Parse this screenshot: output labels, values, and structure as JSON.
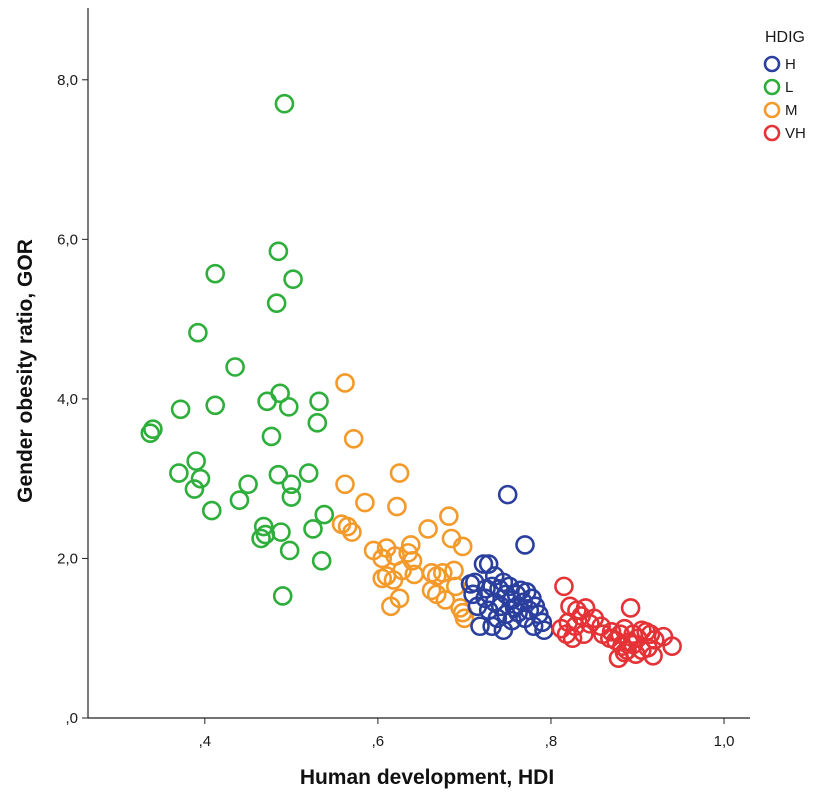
{
  "chart_data": {
    "type": "scatter",
    "title": "",
    "xlabel": "Human development, HDI",
    "ylabel": "Gender obesity ratio, GOR",
    "xlim": [
      0.265,
      1.03
    ],
    "ylim": [
      0,
      8.9
    ],
    "x_ticks": [
      {
        "value": 0.4,
        "label": ",4"
      },
      {
        "value": 0.6,
        "label": ",6"
      },
      {
        "value": 0.8,
        "label": ",8"
      },
      {
        "value": 1.0,
        "label": "1,0"
      }
    ],
    "y_ticks": [
      {
        "value": 0,
        "label": ",0"
      },
      {
        "value": 2,
        "label": "2,0"
      },
      {
        "value": 4,
        "label": "4,0"
      },
      {
        "value": 6,
        "label": "6,0"
      },
      {
        "value": 8,
        "label": "8,0"
      }
    ],
    "grid": false,
    "marker": "open-circle",
    "legend": {
      "title": "HDIG",
      "position": "top-right"
    },
    "series": [
      {
        "name": "H",
        "color": "#2B3F9E",
        "points": [
          [
            0.75,
            2.8
          ],
          [
            0.77,
            2.17
          ],
          [
            0.712,
            1.7
          ],
          [
            0.722,
            1.93
          ],
          [
            0.728,
            1.93
          ],
          [
            0.735,
            1.78
          ],
          [
            0.74,
            1.62
          ],
          [
            0.745,
            1.7
          ],
          [
            0.748,
            1.55
          ],
          [
            0.752,
            1.65
          ],
          [
            0.755,
            1.48
          ],
          [
            0.76,
            1.55
          ],
          [
            0.765,
            1.6
          ],
          [
            0.768,
            1.45
          ],
          [
            0.772,
            1.58
          ],
          [
            0.778,
            1.5
          ],
          [
            0.782,
            1.4
          ],
          [
            0.786,
            1.3
          ],
          [
            0.79,
            1.2
          ],
          [
            0.792,
            1.1
          ],
          [
            0.78,
            1.15
          ],
          [
            0.77,
            1.25
          ],
          [
            0.762,
            1.32
          ],
          [
            0.755,
            1.22
          ],
          [
            0.748,
            1.3
          ],
          [
            0.742,
            1.4
          ],
          [
            0.738,
            1.25
          ],
          [
            0.732,
            1.15
          ],
          [
            0.728,
            1.35
          ],
          [
            0.724,
            1.5
          ],
          [
            0.718,
            1.15
          ],
          [
            0.715,
            1.4
          ],
          [
            0.745,
            1.1
          ],
          [
            0.735,
            1.45
          ],
          [
            0.758,
            1.38
          ],
          [
            0.71,
            1.55
          ],
          [
            0.707,
            1.68
          ],
          [
            0.725,
            1.62
          ],
          [
            0.775,
            1.35
          ],
          [
            0.732,
            1.65
          ]
        ]
      },
      {
        "name": "L",
        "color": "#2EAE3A",
        "points": [
          [
            0.492,
            7.7
          ],
          [
            0.485,
            5.85
          ],
          [
            0.412,
            5.57
          ],
          [
            0.502,
            5.5
          ],
          [
            0.483,
            5.2
          ],
          [
            0.392,
            4.83
          ],
          [
            0.435,
            4.4
          ],
          [
            0.337,
            3.57
          ],
          [
            0.34,
            3.62
          ],
          [
            0.372,
            3.87
          ],
          [
            0.412,
            3.92
          ],
          [
            0.472,
            3.97
          ],
          [
            0.487,
            4.07
          ],
          [
            0.497,
            3.9
          ],
          [
            0.532,
            3.97
          ],
          [
            0.53,
            3.7
          ],
          [
            0.477,
            3.53
          ],
          [
            0.39,
            3.22
          ],
          [
            0.37,
            3.07
          ],
          [
            0.395,
            3.0
          ],
          [
            0.388,
            2.87
          ],
          [
            0.45,
            2.93
          ],
          [
            0.485,
            3.05
          ],
          [
            0.52,
            3.07
          ],
          [
            0.5,
            2.93
          ],
          [
            0.5,
            2.77
          ],
          [
            0.44,
            2.73
          ],
          [
            0.408,
            2.6
          ],
          [
            0.538,
            2.55
          ],
          [
            0.468,
            2.4
          ],
          [
            0.47,
            2.3
          ],
          [
            0.465,
            2.25
          ],
          [
            0.488,
            2.33
          ],
          [
            0.525,
            2.37
          ],
          [
            0.498,
            2.1
          ],
          [
            0.535,
            1.97
          ],
          [
            0.49,
            1.53
          ]
        ]
      },
      {
        "name": "M",
        "color": "#F39A2A",
        "points": [
          [
            0.562,
            4.2
          ],
          [
            0.572,
            3.5
          ],
          [
            0.625,
            3.07
          ],
          [
            0.562,
            2.93
          ],
          [
            0.585,
            2.7
          ],
          [
            0.622,
            2.65
          ],
          [
            0.682,
            2.53
          ],
          [
            0.558,
            2.43
          ],
          [
            0.565,
            2.4
          ],
          [
            0.57,
            2.33
          ],
          [
            0.658,
            2.37
          ],
          [
            0.685,
            2.25
          ],
          [
            0.638,
            2.17
          ],
          [
            0.61,
            2.13
          ],
          [
            0.635,
            2.07
          ],
          [
            0.595,
            2.1
          ],
          [
            0.698,
            2.15
          ],
          [
            0.605,
            2.0
          ],
          [
            0.62,
            2.03
          ],
          [
            0.64,
            1.97
          ],
          [
            0.628,
            1.85
          ],
          [
            0.61,
            1.78
          ],
          [
            0.618,
            1.73
          ],
          [
            0.605,
            1.75
          ],
          [
            0.642,
            1.8
          ],
          [
            0.662,
            1.82
          ],
          [
            0.668,
            1.78
          ],
          [
            0.675,
            1.82
          ],
          [
            0.688,
            1.85
          ],
          [
            0.662,
            1.6
          ],
          [
            0.668,
            1.55
          ],
          [
            0.625,
            1.5
          ],
          [
            0.615,
            1.4
          ],
          [
            0.678,
            1.48
          ],
          [
            0.695,
            1.38
          ],
          [
            0.698,
            1.32
          ],
          [
            0.7,
            1.25
          ],
          [
            0.69,
            1.65
          ]
        ]
      },
      {
        "name": "VH",
        "color": "#E53236",
        "points": [
          [
            0.815,
            1.65
          ],
          [
            0.892,
            1.38
          ],
          [
            0.822,
            1.4
          ],
          [
            0.83,
            1.35
          ],
          [
            0.84,
            1.38
          ],
          [
            0.835,
            1.28
          ],
          [
            0.85,
            1.25
          ],
          [
            0.82,
            1.2
          ],
          [
            0.828,
            1.15
          ],
          [
            0.845,
            1.18
          ],
          [
            0.858,
            1.15
          ],
          [
            0.812,
            1.12
          ],
          [
            0.818,
            1.05
          ],
          [
            0.825,
            1.0
          ],
          [
            0.838,
            1.05
          ],
          [
            0.86,
            1.05
          ],
          [
            0.87,
            1.08
          ],
          [
            0.88,
            1.05
          ],
          [
            0.885,
            1.12
          ],
          [
            0.895,
            1.05
          ],
          [
            0.9,
            1.0
          ],
          [
            0.905,
            1.1
          ],
          [
            0.91,
            1.08
          ],
          [
            0.915,
            1.05
          ],
          [
            0.92,
            0.98
          ],
          [
            0.93,
            1.02
          ],
          [
            0.94,
            0.9
          ],
          [
            0.875,
            0.97
          ],
          [
            0.882,
            0.9
          ],
          [
            0.888,
            0.85
          ],
          [
            0.895,
            0.92
          ],
          [
            0.898,
            0.8
          ],
          [
            0.905,
            0.85
          ],
          [
            0.912,
            0.88
          ],
          [
            0.918,
            0.78
          ],
          [
            0.878,
            0.75
          ],
          [
            0.885,
            0.82
          ],
          [
            0.89,
            0.95
          ],
          [
            0.868,
            1.0
          ]
        ]
      }
    ]
  }
}
